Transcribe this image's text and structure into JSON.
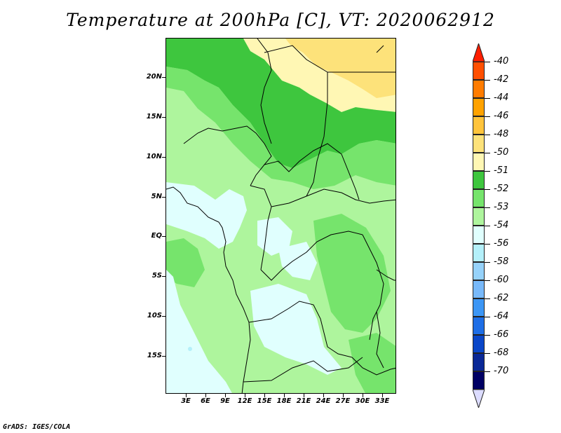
{
  "title": "Temperature at 200hPa [C], VT: 2020062912",
  "credit": "GrADS: IGES/COLA",
  "map": {
    "region": "Central Africa",
    "y_axis_labels": [
      "20N",
      "15N",
      "10N",
      "5N",
      "EQ",
      "5S",
      "10S",
      "15S"
    ],
    "x_axis_labels": [
      "3E",
      "6E",
      "9E",
      "12E",
      "15E",
      "18E",
      "21E",
      "24E",
      "27E",
      "30E",
      "33E"
    ]
  },
  "colorbar": {
    "labels": [
      "-40",
      "-42",
      "-44",
      "-46",
      "-48",
      "-50",
      "-51",
      "-52",
      "-53",
      "-54",
      "-56",
      "-58",
      "-60",
      "-62",
      "-64",
      "-66",
      "-68",
      "-70"
    ],
    "colors": [
      "#ff1e00",
      "#ff4f00",
      "#ff7c00",
      "#ffa200",
      "#ffc43c",
      "#fde27a",
      "#fff7b4",
      "#3ec63e",
      "#76e46c",
      "#aef59d",
      "#e0fffe",
      "#b4f0fa",
      "#96d2fa",
      "#78b9fa",
      "#3c96f5",
      "#1e6ee6",
      "#0a46c8",
      "#0a2896",
      "#000064",
      "#dcdcff"
    ]
  }
}
